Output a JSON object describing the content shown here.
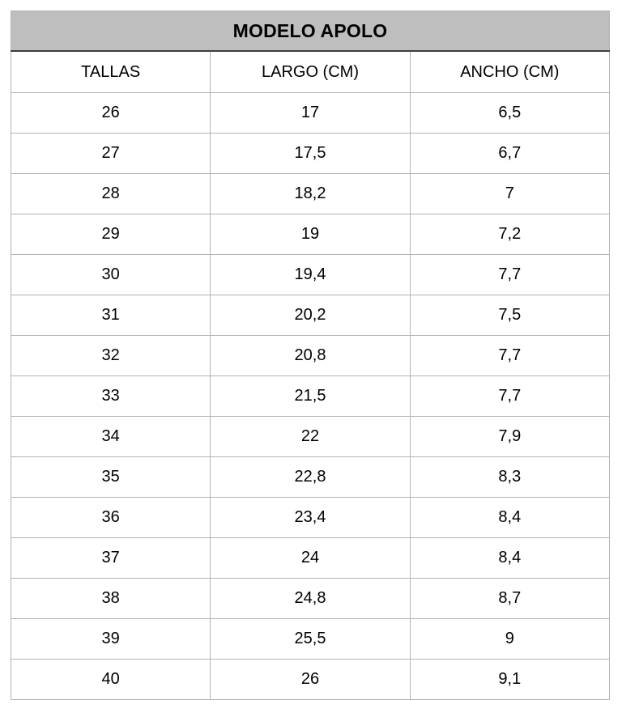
{
  "table": {
    "title": "MODELO APOLO",
    "columns": [
      "TALLAS",
      "LARGO (CM)",
      "ANCHO (CM)"
    ],
    "rows": [
      [
        "26",
        "17",
        "6,5"
      ],
      [
        "27",
        "17,5",
        "6,7"
      ],
      [
        "28",
        "18,2",
        "7"
      ],
      [
        "29",
        "19",
        "7,2"
      ],
      [
        "30",
        "19,4",
        "7,7"
      ],
      [
        "31",
        "20,2",
        "7,5"
      ],
      [
        "32",
        "20,8",
        "7,7"
      ],
      [
        "33",
        "21,5",
        "7,7"
      ],
      [
        "34",
        "22",
        "7,9"
      ],
      [
        "35",
        "22,8",
        "8,3"
      ],
      [
        "36",
        "23,4",
        "8,4"
      ],
      [
        "37",
        "24",
        "8,4"
      ],
      [
        "38",
        "24,8",
        "8,7"
      ],
      [
        "39",
        "25,5",
        "9"
      ],
      [
        "40",
        "26",
        "9,1"
      ]
    ],
    "colors": {
      "title_background": "#bebebe",
      "grid_border": "#b3b3b3",
      "title_bottom_rule": "#3d3d3d",
      "text": "#000000"
    }
  },
  "chart_data": {
    "type": "table",
    "title": "MODELO APOLO",
    "categories": [
      "TALLAS",
      "LARGO (CM)",
      "ANCHO (CM)"
    ],
    "series": [
      {
        "name": "TALLAS",
        "values": [
          26,
          27,
          28,
          29,
          30,
          31,
          32,
          33,
          34,
          35,
          36,
          37,
          38,
          39,
          40
        ]
      },
      {
        "name": "LARGO (CM)",
        "values": [
          17,
          17.5,
          18.2,
          19,
          19.4,
          20.2,
          20.8,
          21.5,
          22,
          22.8,
          23.4,
          24,
          24.8,
          25.5,
          26
        ]
      },
      {
        "name": "ANCHO (CM)",
        "values": [
          6.5,
          6.7,
          7,
          7.2,
          7.7,
          7.5,
          7.7,
          7.7,
          7.9,
          8.3,
          8.4,
          8.4,
          8.7,
          9,
          9.1
        ]
      }
    ]
  }
}
